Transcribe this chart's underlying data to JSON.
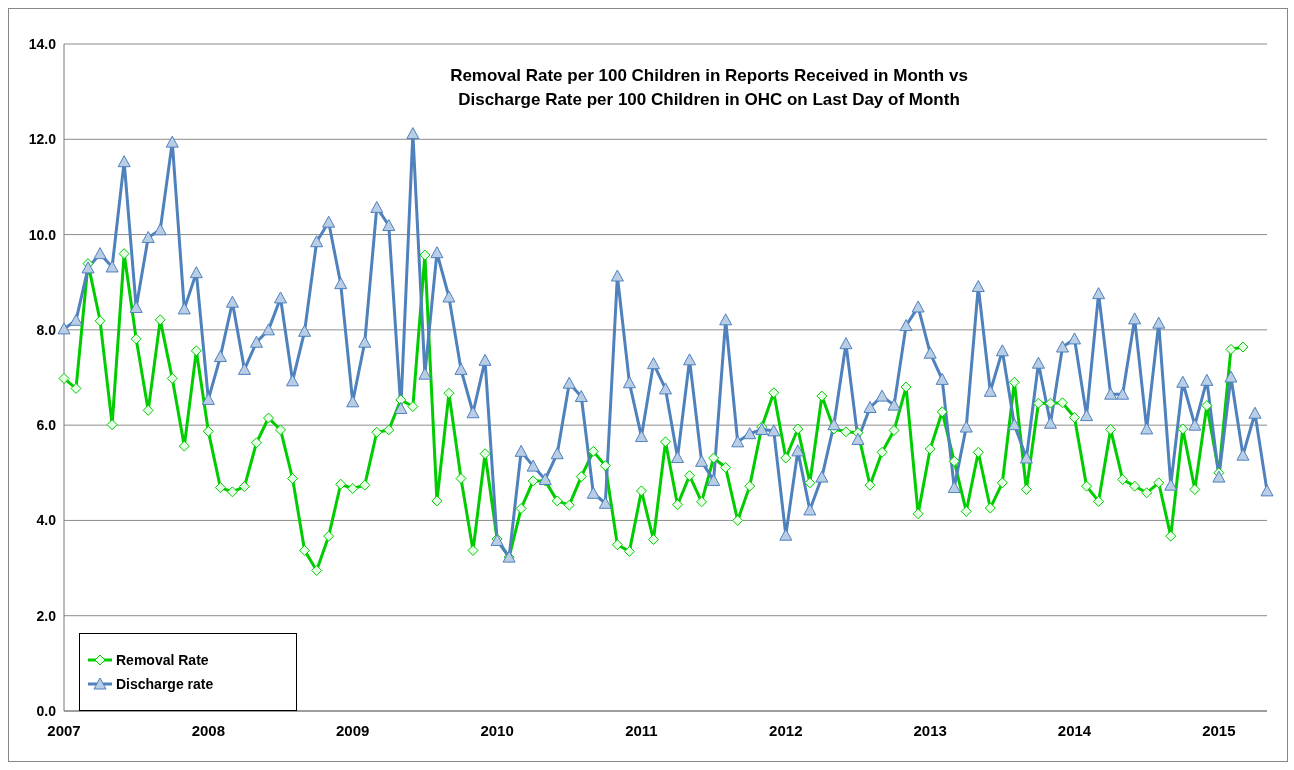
{
  "chart_data": {
    "type": "line",
    "title": "Removal Rate per 100 Children in Reports Received in Month vs\nDischarge Rate per 100 Children in OHC  on Last Day of Month",
    "categories": [
      "2007",
      null,
      null,
      null,
      null,
      null,
      null,
      null,
      null,
      null,
      null,
      null,
      "2008",
      null,
      null,
      null,
      null,
      null,
      null,
      null,
      null,
      null,
      null,
      null,
      "2009",
      null,
      null,
      null,
      null,
      null,
      null,
      null,
      null,
      null,
      null,
      null,
      "2010",
      null,
      null,
      null,
      null,
      null,
      null,
      null,
      null,
      null,
      null,
      null,
      "2011",
      null,
      null,
      null,
      null,
      null,
      null,
      null,
      null,
      null,
      null,
      null,
      "2012",
      null,
      null,
      null,
      null,
      null,
      null,
      null,
      null,
      null,
      null,
      null,
      "2013",
      null,
      null,
      null,
      null,
      null,
      null,
      null,
      null,
      null,
      null,
      null,
      "2014",
      null,
      null,
      null,
      null,
      null,
      null,
      null,
      null,
      null,
      null,
      null,
      "2015",
      null,
      null,
      null,
      null
    ],
    "series": [
      {
        "name": "Removal Rate",
        "color": "#00cc00",
        "marker": "diamond",
        "values": [
          6.98,
          6.77,
          9.39,
          8.19,
          6.01,
          9.6,
          7.81,
          6.31,
          8.21,
          6.98,
          5.56,
          7.56,
          5.87,
          4.69,
          4.6,
          4.71,
          5.63,
          6.15,
          5.9,
          4.88,
          3.37,
          2.95,
          3.67,
          4.76,
          4.67,
          4.74,
          5.85,
          5.9,
          6.53,
          6.39,
          9.57,
          4.41,
          6.67,
          4.88,
          3.37,
          5.4,
          3.61,
          3.23,
          4.25,
          4.83,
          4.83,
          4.41,
          4.32,
          4.92,
          5.45,
          5.15,
          3.49,
          3.35,
          4.62,
          3.6,
          5.65,
          4.33,
          4.94,
          4.39,
          5.31,
          5.11,
          4.0,
          4.72,
          5.96,
          6.68,
          5.31,
          5.92,
          4.79,
          6.61,
          5.92,
          5.86,
          5.84,
          4.74,
          5.43,
          5.89,
          6.8,
          4.14,
          5.5,
          6.28,
          5.24,
          4.19,
          5.43,
          4.26,
          4.79,
          6.9,
          4.65,
          6.46,
          6.46,
          6.47,
          6.16,
          4.72,
          4.4,
          5.91,
          4.86,
          4.72,
          4.58,
          4.79,
          3.67,
          5.92,
          4.65,
          6.41,
          5.0,
          7.59,
          7.64,
          null,
          null
        ]
      },
      {
        "name": "Discharge rate",
        "color": "#4f81bd",
        "marker": "triangle",
        "values": [
          8.02,
          8.2,
          9.3,
          9.6,
          9.32,
          11.53,
          8.47,
          9.94,
          10.1,
          11.94,
          8.44,
          9.2,
          6.54,
          7.44,
          8.58,
          7.17,
          7.74,
          8.0,
          8.67,
          6.93,
          7.97,
          9.85,
          10.26,
          8.97,
          6.49,
          7.74,
          10.57,
          10.19,
          6.35,
          12.12,
          7.07,
          9.62,
          8.69,
          7.17,
          6.26,
          7.36,
          3.58,
          3.23,
          5.45,
          5.14,
          4.86,
          5.4,
          6.88,
          6.6,
          4.57,
          4.36,
          9.13,
          6.89,
          5.76,
          7.29,
          6.76,
          5.32,
          7.37,
          5.24,
          4.84,
          8.21,
          5.65,
          5.82,
          5.91,
          5.88,
          3.69,
          5.46,
          4.22,
          4.91,
          6.01,
          7.71,
          5.7,
          6.37,
          6.61,
          6.42,
          8.09,
          8.48,
          7.51,
          6.96,
          4.69,
          5.96,
          8.91,
          6.71,
          7.56,
          6.01,
          5.31,
          7.3,
          6.04,
          7.64,
          7.81,
          6.2,
          8.76,
          6.65,
          6.65,
          8.23,
          5.92,
          8.14,
          4.74,
          6.9,
          6.0,
          6.94,
          4.91,
          7.01,
          5.37,
          6.25,
          4.62
        ]
      }
    ],
    "ylim": [
      0,
      14
    ],
    "yticks": [
      {
        "value": 0,
        "label": "0.0"
      },
      {
        "value": 2,
        "label": "2.0"
      },
      {
        "value": 4,
        "label": "4.0"
      },
      {
        "value": 6,
        "label": "6.0"
      },
      {
        "value": 8,
        "label": "8.0"
      },
      {
        "value": 10,
        "label": "10.0"
      },
      {
        "value": 12,
        "label": "12.0"
      },
      {
        "value": 14,
        "label": "14.0"
      }
    ],
    "grid": "y",
    "legend": "bottom left",
    "line_style": "solid"
  }
}
